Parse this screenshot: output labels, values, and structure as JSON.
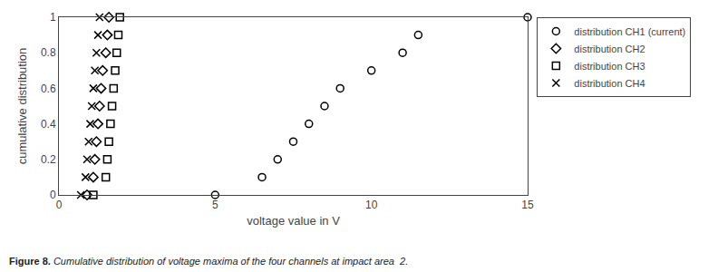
{
  "chart_data": {
    "type": "scatter",
    "x_label": "voltage value in V",
    "y_label": "cumulative distribution",
    "annotations": [
      "Figure 8.",
      "Cumulative distribution of voltage maxima of the four channels at impact area  2."
    ],
    "series": [
      {
        "name": "distribution CH1 (current)",
        "color": "black",
        "marker": "circle-open",
        "x": [
          5.0,
          6.5,
          7.0,
          7.5,
          8.0,
          8.5,
          9.0,
          10.0,
          11.0,
          11.5,
          15.0
        ],
        "y": [
          0.0,
          0.1,
          0.2,
          0.3,
          0.4,
          0.5,
          0.6,
          0.7,
          0.8,
          0.9,
          1.0
        ]
      },
      {
        "name": "distribution CH2",
        "color": "black",
        "marker": "diamond-open",
        "x": [
          0.9,
          1.1,
          1.15,
          1.2,
          1.25,
          1.3,
          1.35,
          1.4,
          1.5,
          1.55,
          1.6
        ],
        "y": [
          0.0,
          0.1,
          0.2,
          0.3,
          0.4,
          0.5,
          0.6,
          0.7,
          0.8,
          0.9,
          1.0
        ]
      },
      {
        "name": "distribution CH3",
        "color": "black",
        "marker": "square-open",
        "x": [
          1.1,
          1.5,
          1.55,
          1.6,
          1.65,
          1.7,
          1.75,
          1.8,
          1.85,
          1.9,
          1.95
        ],
        "y": [
          0.0,
          0.1,
          0.2,
          0.3,
          0.4,
          0.5,
          0.6,
          0.7,
          0.8,
          0.9,
          1.0
        ]
      },
      {
        "name": "distribution CH4",
        "color": "black",
        "marker": "x-thin-open",
        "x": [
          0.7,
          0.85,
          0.9,
          0.95,
          1.0,
          1.05,
          1.1,
          1.15,
          1.2,
          1.25,
          1.3
        ],
        "y": [
          0.0,
          0.1,
          0.2,
          0.3,
          0.4,
          0.5,
          0.6,
          0.7,
          0.8,
          0.9,
          1.0
        ]
      }
    ],
    "xlim": [
      0,
      15
    ],
    "ylim": [
      0,
      1
    ],
    "xticks": [
      0,
      5,
      10,
      15
    ],
    "yticks": [
      0,
      0.2,
      0.4,
      0.6,
      0.8,
      1
    ],
    "grid": false,
    "legend": "upper right"
  }
}
